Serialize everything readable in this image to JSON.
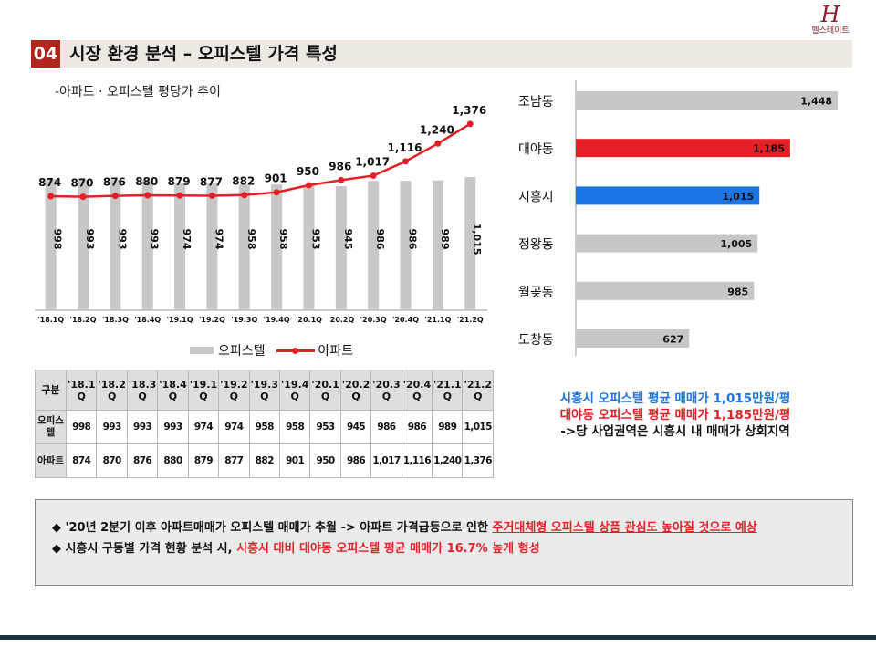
{
  "logo": {
    "mark": "H",
    "text": "헬스테이트"
  },
  "header": {
    "number": "04",
    "title": "시장 환경 분석 – 오피스텔 가격 특성"
  },
  "chart_subtitle": "-아파트 · 오피스텔 평당가 추이",
  "chart_data": [
    {
      "type": "bar",
      "categories": [
        "'18.1Q",
        "'18.2Q",
        "'18.3Q",
        "'18.4Q",
        "'19.1Q",
        "'19.2Q",
        "'19.3Q",
        "'19.4Q",
        "'20.1Q",
        "'20.2Q",
        "'20.3Q",
        "'20.4Q",
        "'21.1Q",
        "'21.2Q"
      ],
      "series": [
        {
          "name": "오피스텔",
          "type": "bar",
          "values": [
            998,
            993,
            993,
            993,
            974,
            974,
            958,
            958,
            953,
            945,
            986,
            986,
            989,
            1015
          ],
          "labels": [
            "998",
            "993",
            "993",
            "993",
            "974",
            "974",
            "958",
            "958",
            "953",
            "945",
            "986",
            "986",
            "989",
            "1,015"
          ]
        },
        {
          "name": "아파트",
          "type": "line",
          "values": [
            874,
            870,
            876,
            880,
            879,
            877,
            882,
            901,
            950,
            986,
            1017,
            1116,
            1240,
            1376
          ],
          "labels": [
            "874",
            "870",
            "876",
            "880",
            "879",
            "877",
            "882",
            "901",
            "950",
            "986",
            "1,017",
            "1,116",
            "1,240",
            "1,376"
          ]
        }
      ],
      "legend": "bottom",
      "grid": false
    },
    {
      "type": "bar",
      "orientation": "horizontal",
      "categories": [
        "조남동",
        "대야동",
        "시흥시",
        "정왕동",
        "월곶동",
        "도창동"
      ],
      "values": [
        1448,
        1185,
        1015,
        1005,
        985,
        627
      ],
      "labels": [
        "1,448",
        "1,185",
        "1,015",
        "1,005",
        "985",
        "627"
      ],
      "colors": [
        "#c7c7c7",
        "#e51f26",
        "#1a74e6",
        "#c7c7c7",
        "#c7c7c7",
        "#c7c7c7"
      ],
      "grid": false
    }
  ],
  "table": {
    "corner": "구분",
    "headers": [
      "'18.1Q",
      "'18.2Q",
      "'18.3Q",
      "'18.4Q",
      "'19.1Q",
      "'19.2Q",
      "'19.3Q",
      "'19.4Q",
      "'20.1Q",
      "'20.2Q",
      "'20.3Q",
      "'20.4Q",
      "'21.1Q",
      "'21.2Q"
    ],
    "rows": [
      {
        "label": "오피스텔",
        "values": [
          "998",
          "993",
          "993",
          "993",
          "974",
          "974",
          "958",
          "958",
          "953",
          "945",
          "986",
          "986",
          "989",
          "1,015"
        ]
      },
      {
        "label": "아파트",
        "values": [
          "874",
          "870",
          "876",
          "880",
          "879",
          "877",
          "882",
          "901",
          "950",
          "986",
          "1,017",
          "1,116",
          "1,240",
          "1,376"
        ]
      }
    ]
  },
  "summary": {
    "line1": "시흥시 오피스텔 평균 매매가 1,015만원/평",
    "line2": "대야동 오피스텔 평균 매매가 1,185만원/평",
    "line3": "->당 사업권역은 시흥시 내 매매가 상회지역"
  },
  "notes": [
    {
      "bullet": "◆",
      "plain": "'20년 2분기 이후 아파트매매가 오피스텔 매매가 추월 -> 아파트 가격급등으로 인한 ",
      "emphasis": "주거대체형 오피스텔 상품 관심도 높아질 것으로 예상"
    },
    {
      "bullet": "◆",
      "plain": "시흥시 구동별 가격 현황 분석 시, ",
      "emphasis": "시흥시 대비 대야동 오피스텔 평균 매매가 16.7% 높게 형성"
    }
  ],
  "colors": {
    "accent": "#b3241d",
    "bar_gray": "#c7c7c7",
    "line_red": "#e51f26",
    "highlight_blue": "#1a74e6",
    "footer": "#1e3139"
  }
}
